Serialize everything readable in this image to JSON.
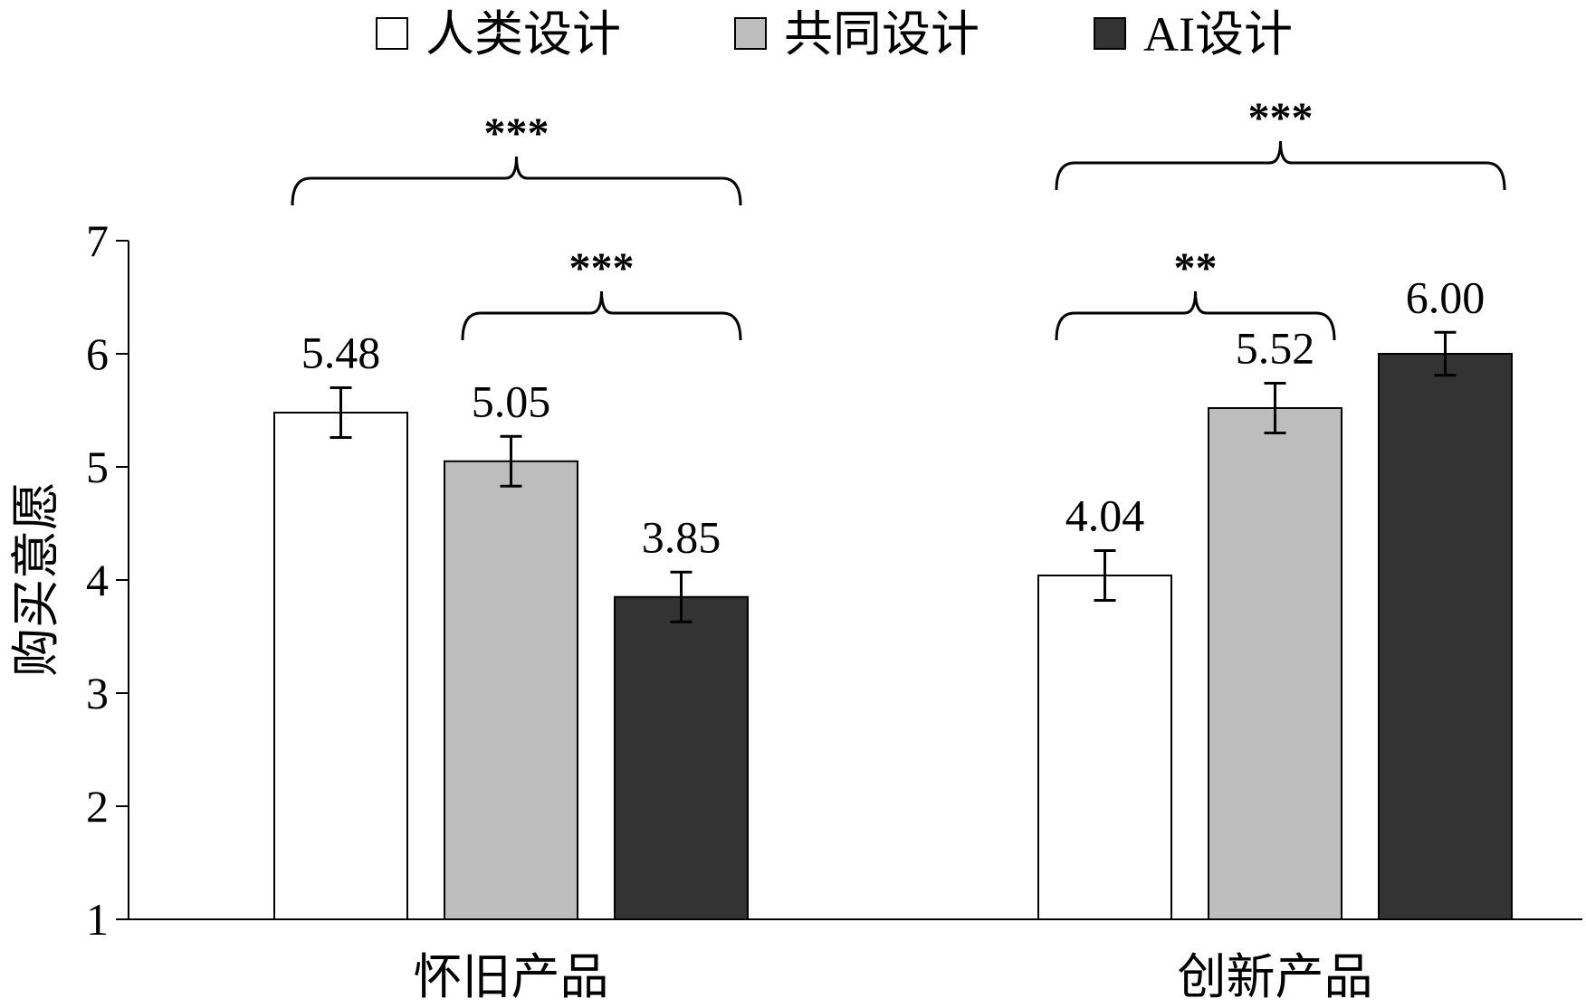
{
  "chart_data": {
    "type": "bar",
    "categories": [
      "怀旧产品",
      "创新产品"
    ],
    "series": [
      {
        "name": "人类设计",
        "color": "#ffffff",
        "values": [
          5.48,
          4.04
        ],
        "value_labels": [
          "5.48",
          "4.04"
        ],
        "error": [
          0.22,
          0.22
        ]
      },
      {
        "name": "共同设计",
        "color": "#bdbdbd",
        "values": [
          5.05,
          5.52
        ],
        "value_labels": [
          "5.05",
          "5.52"
        ],
        "error": [
          0.22,
          0.22
        ]
      },
      {
        "name": "AI设计",
        "color": "#333333",
        "values": [
          3.85,
          6.0
        ],
        "value_labels": [
          "3.85",
          "6.00"
        ],
        "error": [
          0.22,
          0.19
        ]
      }
    ],
    "xlabel": "",
    "ylabel": "购买意愿",
    "ylim": [
      1,
      7
    ],
    "yticks": [
      "1",
      "2",
      "3",
      "4",
      "5",
      "6",
      "7"
    ],
    "grid": false,
    "legend_position": "top",
    "significance": [
      {
        "category": 0,
        "from_series": 0,
        "to_series": 2,
        "label": "***"
      },
      {
        "category": 0,
        "from_series": 1,
        "to_series": 2,
        "label": "***"
      },
      {
        "category": 1,
        "from_series": 0,
        "to_series": 2,
        "label": "***"
      },
      {
        "category": 1,
        "from_series": 0,
        "to_series": 1,
        "label": "**"
      }
    ]
  }
}
